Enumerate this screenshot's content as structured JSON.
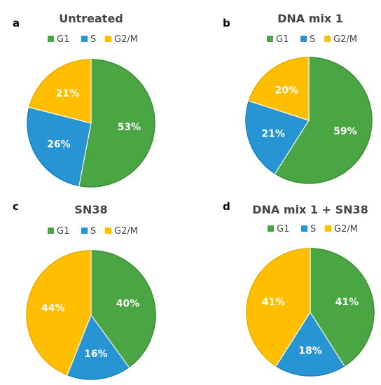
{
  "colors": {
    "G1": "#4aa543",
    "S": "#2794d3",
    "G2/M": "#ffbf00",
    "G1_edge": "#3a8e35",
    "S_edge": "#1f7db7",
    "G2/M_edge": "#e6ac00"
  },
  "legend_labels": [
    "G1",
    "S",
    "G2/M"
  ],
  "chart_data": [
    {
      "type": "pie",
      "panel": "a",
      "title": "Untreated",
      "categories": [
        "G1",
        "S",
        "G2/M"
      ],
      "values": [
        53,
        26,
        21
      ],
      "labels": [
        "53%",
        "26%",
        "21%"
      ],
      "legend_position": "top"
    },
    {
      "type": "pie",
      "panel": "b",
      "title": "DNA mix 1",
      "categories": [
        "G1",
        "S",
        "G2/M"
      ],
      "values": [
        59,
        21,
        20
      ],
      "labels": [
        "59%",
        "21%",
        "20%"
      ],
      "legend_position": "top"
    },
    {
      "type": "pie",
      "panel": "c",
      "title": "SN38",
      "categories": [
        "G1",
        "S",
        "G2/M"
      ],
      "values": [
        40,
        16,
        44
      ],
      "labels": [
        "40%",
        "16%",
        "44%"
      ],
      "legend_position": "top"
    },
    {
      "type": "pie",
      "panel": "d",
      "title": "DNA mix 1 + SN38",
      "categories": [
        "G1",
        "S",
        "G2/M"
      ],
      "values": [
        41,
        18,
        41
      ],
      "labels": [
        "41%",
        "18%",
        "41%"
      ],
      "legend_position": "top"
    }
  ]
}
